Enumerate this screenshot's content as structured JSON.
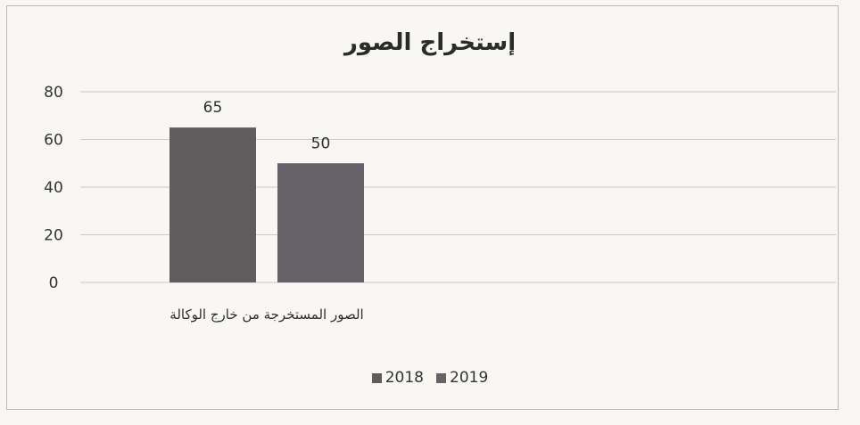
{
  "chart_data": {
    "type": "bar",
    "title": "إستخراج الصور",
    "categories": [
      "الصور المستخرجة من خارج الوكالة"
    ],
    "series": [
      {
        "name": "2018",
        "values": [
          65
        ],
        "color": "#5f5c5e"
      },
      {
        "name": "2019",
        "values": [
          50
        ],
        "color": "#66626a"
      }
    ],
    "ylim": [
      0,
      80
    ],
    "yticks": [
      0,
      20,
      40,
      60,
      80
    ],
    "grid": true,
    "legend_position": "bottom"
  }
}
